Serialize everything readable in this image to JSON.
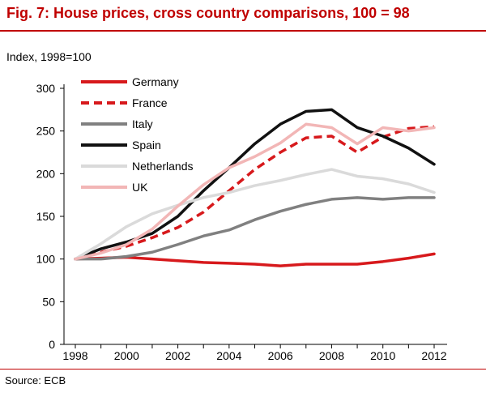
{
  "header": {
    "title": "Fig. 7: House prices, cross country comparisons, 100 = 98",
    "source": "Source: ECB"
  },
  "chart_data": {
    "type": "line",
    "title": "Fig. 7: House prices, cross country comparisons, 100 = 98",
    "ylabel": "Index, 1998=100",
    "xlabel": "",
    "ylim": [
      0,
      300
    ],
    "xlim": [
      1998,
      2012
    ],
    "yticks": [
      "0",
      "50",
      "100",
      "150",
      "200",
      "250",
      "300"
    ],
    "xticks": [
      "1998",
      "2000",
      "2002",
      "2004",
      "2006",
      "2008",
      "2010",
      "2012"
    ],
    "grid": false,
    "legend_position": "top-left",
    "x": [
      1998,
      1999,
      2000,
      2001,
      2002,
      2003,
      2004,
      2005,
      2006,
      2007,
      2008,
      2009,
      2010,
      2011,
      2012
    ],
    "series": [
      {
        "name": "Germany",
        "color": "#d7191c",
        "dash": "solid",
        "values": [
          100,
          101,
          102,
          100,
          98,
          96,
          95,
          94,
          92,
          94,
          94,
          94,
          97,
          101,
          106
        ]
      },
      {
        "name": "France",
        "color": "#d7191c",
        "dash": "dashed",
        "values": [
          100,
          108,
          115,
          125,
          137,
          155,
          180,
          205,
          225,
          242,
          244,
          225,
          243,
          253,
          255
        ]
      },
      {
        "name": "Italy",
        "color": "#808080",
        "dash": "solid",
        "values": [
          100,
          100,
          103,
          108,
          117,
          127,
          134,
          146,
          156,
          164,
          170,
          172,
          170,
          172,
          172
        ]
      },
      {
        "name": "Spain",
        "color": "#111111",
        "dash": "solid",
        "values": [
          100,
          112,
          120,
          130,
          150,
          180,
          207,
          235,
          258,
          273,
          275,
          254,
          244,
          230,
          211
        ]
      },
      {
        "name": "Netherlands",
        "color": "#dadada",
        "dash": "solid",
        "values": [
          100,
          118,
          138,
          153,
          163,
          172,
          178,
          186,
          192,
          199,
          205,
          197,
          194,
          188,
          178
        ]
      },
      {
        "name": "UK",
        "color": "#f2b6b6",
        "dash": "solid",
        "values": [
          100,
          107,
          117,
          135,
          162,
          187,
          207,
          220,
          236,
          258,
          254,
          235,
          254,
          250,
          254
        ]
      }
    ]
  }
}
